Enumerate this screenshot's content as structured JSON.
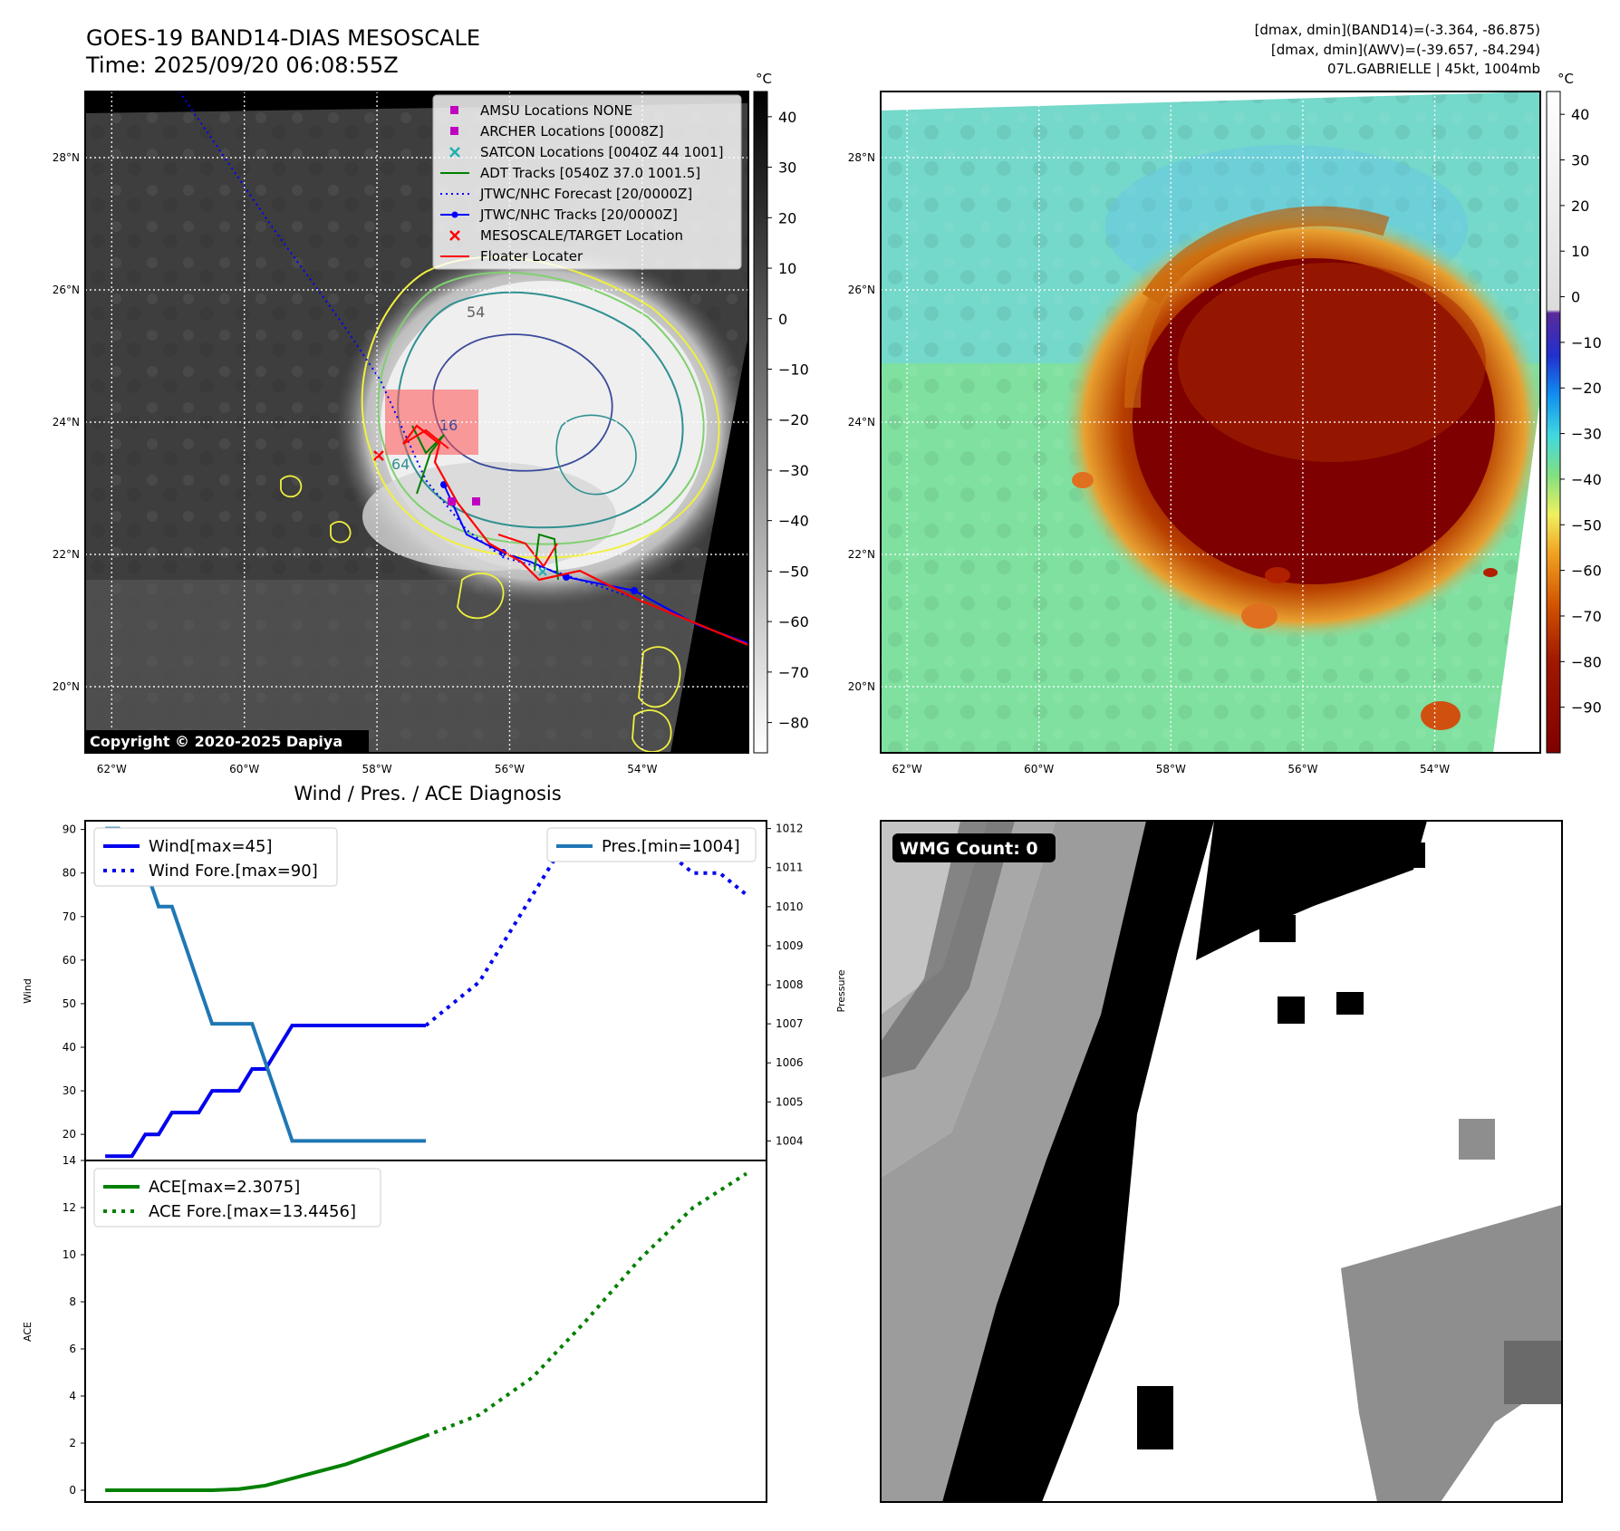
{
  "header": {
    "title": "GOES-19 BAND14-DIAS MESOSCALE",
    "time": "Time: 2025/09/20 06:08:55Z",
    "info_line1": "[dmax, dmin](BAND14)=(-3.364, -86.875)",
    "info_line2": "[dmax, dmin](AWV)=(-39.657, -84.294)",
    "info_line3": "07L.GABRIELLE | 45kt, 1004mb"
  },
  "map_axes": {
    "lon_ticks": [
      "62°W",
      "60°W",
      "58°W",
      "56°W",
      "54°W"
    ],
    "lat_ticks": [
      "28°N",
      "26°N",
      "24°N",
      "22°N",
      "20°N"
    ],
    "lon_range": [
      -62.4,
      -52.4
    ],
    "lat_range": [
      19.0,
      29.0
    ]
  },
  "panel_ir": {
    "copyright": "Copyright © 2020-2025 Dapiya",
    "colorbar_unit": "°C",
    "colorbar_ticks": [
      "40",
      "30",
      "20",
      "10",
      "0",
      "−10",
      "−20",
      "−30",
      "−40",
      "−50",
      "−60",
      "−70",
      "−80"
    ],
    "contour_labels": [
      "54",
      "16",
      "64"
    ],
    "legend": [
      {
        "label": "AMSU Locations NONE",
        "color": "#c000c0",
        "marker": "square"
      },
      {
        "label": "ARCHER Locations [0008Z]",
        "color": "#c000c0",
        "marker": "square"
      },
      {
        "label": "SATCON Locations [0040Z 44 1001]",
        "color": "#20b0b0",
        "marker": "x"
      },
      {
        "label": "ADT Tracks [0540Z 37.0 1001.5]",
        "color": "#008000",
        "marker": "line"
      },
      {
        "label": "JTWC/NHC Forecast [20/0000Z]",
        "color": "#0000ff",
        "marker": "dotted"
      },
      {
        "label": "JTWC/NHC Tracks [20/0000Z]",
        "color": "#0000ff",
        "marker": "line-dot"
      },
      {
        "label": "MESOSCALE/TARGET Location",
        "color": "#ff0000",
        "marker": "x"
      },
      {
        "label": "Floater Locater",
        "color": "#ff0000",
        "marker": "line"
      }
    ]
  },
  "panel_awv": {
    "colorbar_unit": "°C",
    "colorbar_ticks": [
      "40",
      "30",
      "20",
      "10",
      "0",
      "−10",
      "−20",
      "−30",
      "−40",
      "−50",
      "−60",
      "−70",
      "−80",
      "−90"
    ]
  },
  "panel_wmg": {
    "label": "WMG Count: 0"
  },
  "chart_data": [
    {
      "type": "line",
      "title": "Wind / Pres. / ACE Diagnosis",
      "ylabel": "Wind",
      "y2label": "Pressure",
      "ylim": [
        14,
        92
      ],
      "y2lim": [
        1003.5,
        1012.2
      ],
      "yticks": [
        20,
        30,
        40,
        50,
        60,
        70,
        80,
        90
      ],
      "y2ticks": [
        1004,
        1005,
        1006,
        1007,
        1008,
        1009,
        1010,
        1011,
        1012
      ],
      "series": [
        {
          "name": "Wind[max=45]",
          "axis": "left",
          "style": "solid",
          "color": "#0000ee",
          "x": [
            0,
            1,
            2,
            3,
            4,
            5,
            6,
            7,
            8,
            9,
            10,
            11,
            12,
            13,
            14,
            15,
            16,
            17,
            18,
            19,
            20,
            21,
            22,
            23,
            24
          ],
          "y": [
            15,
            15,
            15,
            20,
            20,
            25,
            25,
            25,
            30,
            30,
            30,
            35,
            35,
            40,
            45,
            45,
            45,
            45,
            45,
            45,
            45,
            45,
            45,
            45,
            45
          ]
        },
        {
          "name": "Wind Fore.[max=90]",
          "axis": "left",
          "style": "dotted",
          "color": "#0000ee",
          "x": [
            24,
            26,
            28,
            30,
            32,
            34,
            36,
            38,
            40,
            42,
            44,
            46,
            48
          ],
          "y": [
            45,
            50,
            55,
            65,
            75,
            85,
            90,
            90,
            90,
            85,
            80,
            80,
            75
          ]
        },
        {
          "name": "Pres.[min=1004]",
          "axis": "right",
          "style": "solid",
          "color": "#1f77b4",
          "x": [
            0,
            1,
            2,
            3,
            4,
            5,
            6,
            7,
            8,
            9,
            10,
            11,
            12,
            13,
            14,
            15,
            16,
            17,
            18,
            19,
            20,
            21,
            22,
            23,
            24
          ],
          "y": [
            1012,
            1012,
            1011,
            1011,
            1010,
            1010,
            1009,
            1008,
            1007,
            1007,
            1007,
            1007,
            1006,
            1005,
            1004,
            1004,
            1004,
            1004,
            1004,
            1004,
            1004,
            1004,
            1004,
            1004,
            1004
          ]
        }
      ]
    },
    {
      "type": "line",
      "ylabel": "ACE",
      "ylim": [
        -0.5,
        14
      ],
      "yticks": [
        0,
        2,
        4,
        6,
        8,
        10,
        12,
        14
      ],
      "series": [
        {
          "name": "ACE[max=2.3075]",
          "style": "solid",
          "color": "#008000",
          "x": [
            0,
            4,
            8,
            10,
            12,
            14,
            16,
            18,
            20,
            22,
            24
          ],
          "y": [
            0,
            0,
            0,
            0.05,
            0.2,
            0.5,
            0.8,
            1.1,
            1.5,
            1.9,
            2.3075
          ]
        },
        {
          "name": "ACE Fore.[max=13.4456]",
          "style": "dotted",
          "color": "#008000",
          "x": [
            24,
            28,
            32,
            36,
            40,
            44,
            48
          ],
          "y": [
            2.3075,
            3.2,
            4.8,
            7.2,
            9.8,
            12.0,
            13.4456
          ]
        }
      ]
    }
  ]
}
